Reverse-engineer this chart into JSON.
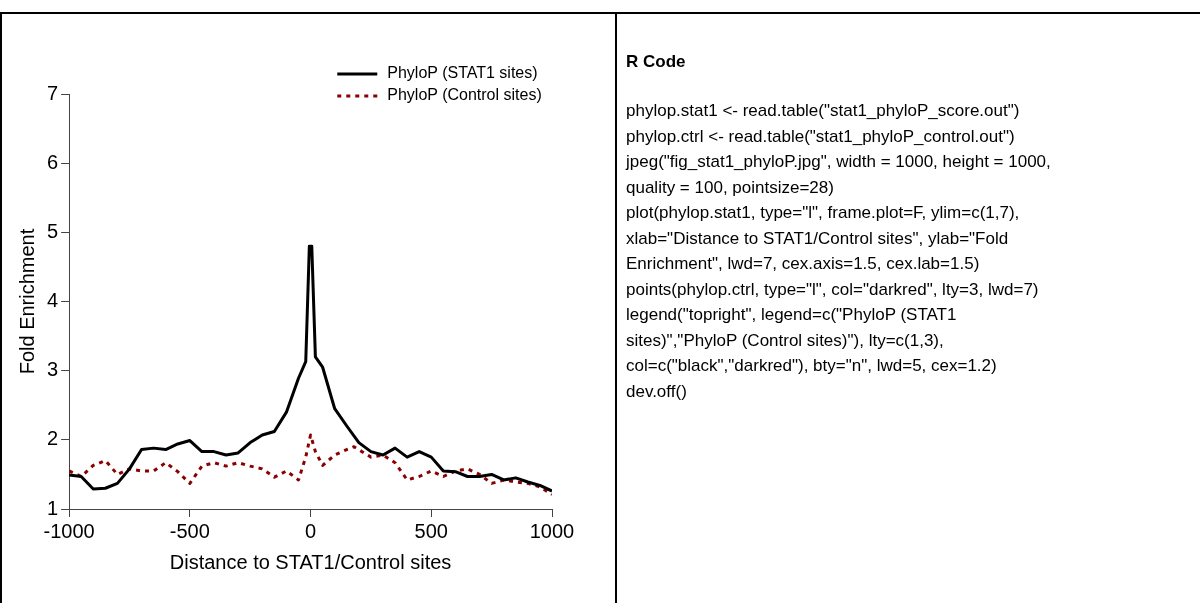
{
  "chart_data": [
    {
      "type": "line",
      "xlabel": "Distance to STAT1/Control sites",
      "ylabel": "Fold Enrichment",
      "xlim": [
        -1000,
        1000
      ],
      "ylim": [
        1,
        7
      ],
      "xticks": [
        -1000,
        -500,
        0,
        500,
        1000
      ],
      "yticks": [
        1,
        2,
        3,
        4,
        5,
        6,
        7
      ],
      "legend": "top right",
      "grid": false,
      "marker": "none",
      "series": [
        {
          "name": "PhyloP (STAT1 sites)",
          "color": "#000000",
          "line_style": "solid",
          "x": [
            -1000,
            -950,
            -900,
            -850,
            -800,
            -750,
            -700,
            -650,
            -600,
            -550,
            -500,
            -450,
            -400,
            -350,
            -300,
            -250,
            -200,
            -150,
            -100,
            -50,
            -20,
            -5,
            0,
            5,
            20,
            50,
            100,
            150,
            200,
            250,
            300,
            350,
            400,
            450,
            500,
            550,
            600,
            650,
            700,
            750,
            800,
            850,
            900,
            950,
            1000
          ],
          "values": [
            1.49,
            1.47,
            1.29,
            1.3,
            1.37,
            1.58,
            1.86,
            1.88,
            1.86,
            1.94,
            1.99,
            1.83,
            1.83,
            1.78,
            1.81,
            1.96,
            2.07,
            2.12,
            2.4,
            2.89,
            3.13,
            4.8,
            4.8,
            4.8,
            3.2,
            3.05,
            2.45,
            2.2,
            1.96,
            1.83,
            1.78,
            1.88,
            1.75,
            1.83,
            1.75,
            1.55,
            1.54,
            1.47,
            1.47,
            1.5,
            1.42,
            1.45,
            1.39,
            1.34,
            1.26
          ]
        },
        {
          "name": "PhyloP (Control sites)",
          "color": "#8b0000",
          "line_style": "dotted",
          "x": [
            -1000,
            -950,
            -900,
            -850,
            -800,
            -750,
            -700,
            -650,
            -600,
            -550,
            -500,
            -450,
            -400,
            -350,
            -300,
            -250,
            -200,
            -150,
            -100,
            -50,
            -20,
            0,
            20,
            50,
            100,
            150,
            180,
            250,
            300,
            350,
            400,
            450,
            500,
            550,
            600,
            650,
            700,
            750,
            800,
            850,
            900,
            950,
            1000
          ],
          "values": [
            1.55,
            1.47,
            1.63,
            1.7,
            1.5,
            1.58,
            1.55,
            1.55,
            1.67,
            1.54,
            1.37,
            1.62,
            1.67,
            1.62,
            1.67,
            1.62,
            1.58,
            1.46,
            1.55,
            1.42,
            1.75,
            2.07,
            1.83,
            1.63,
            1.78,
            1.86,
            1.9,
            1.75,
            1.78,
            1.67,
            1.42,
            1.47,
            1.55,
            1.47,
            1.55,
            1.58,
            1.5,
            1.37,
            1.42,
            1.39,
            1.37,
            1.32,
            1.21
          ]
        }
      ]
    },
    {
      "type": "other",
      "title": "R Code",
      "annotations": [
        "phylop.stat1 <- read.table(\"stat1_phyloP_score.out\")",
        "phylop.ctrl <- read.table(\"stat1_phyloP_control.out\")",
        "jpeg(\"fig_stat1_phyloP.jpg\", width = 1000, height = 1000,",
        "quality = 100, pointsize=28)",
        "plot(phylop.stat1, type=\"l\", frame.plot=F, ylim=c(1,7),",
        "xlab=\"Distance to STAT1/Control sites\", ylab=\"Fold",
        "Enrichment\", lwd=7, cex.axis=1.5, cex.lab=1.5)",
        "points(phylop.ctrl, type=\"l\", col=\"darkred\", lty=3, lwd=7)",
        "legend(\"topright\", legend=c(\"PhyloP (STAT1",
        "sites)\",\"PhyloP (Control sites)\"), lty=c(1,3),",
        "col=c(\"black\",\"darkred\"), bty=\"n\", lwd=5, cex=1.2)",
        "dev.off()"
      ]
    }
  ]
}
